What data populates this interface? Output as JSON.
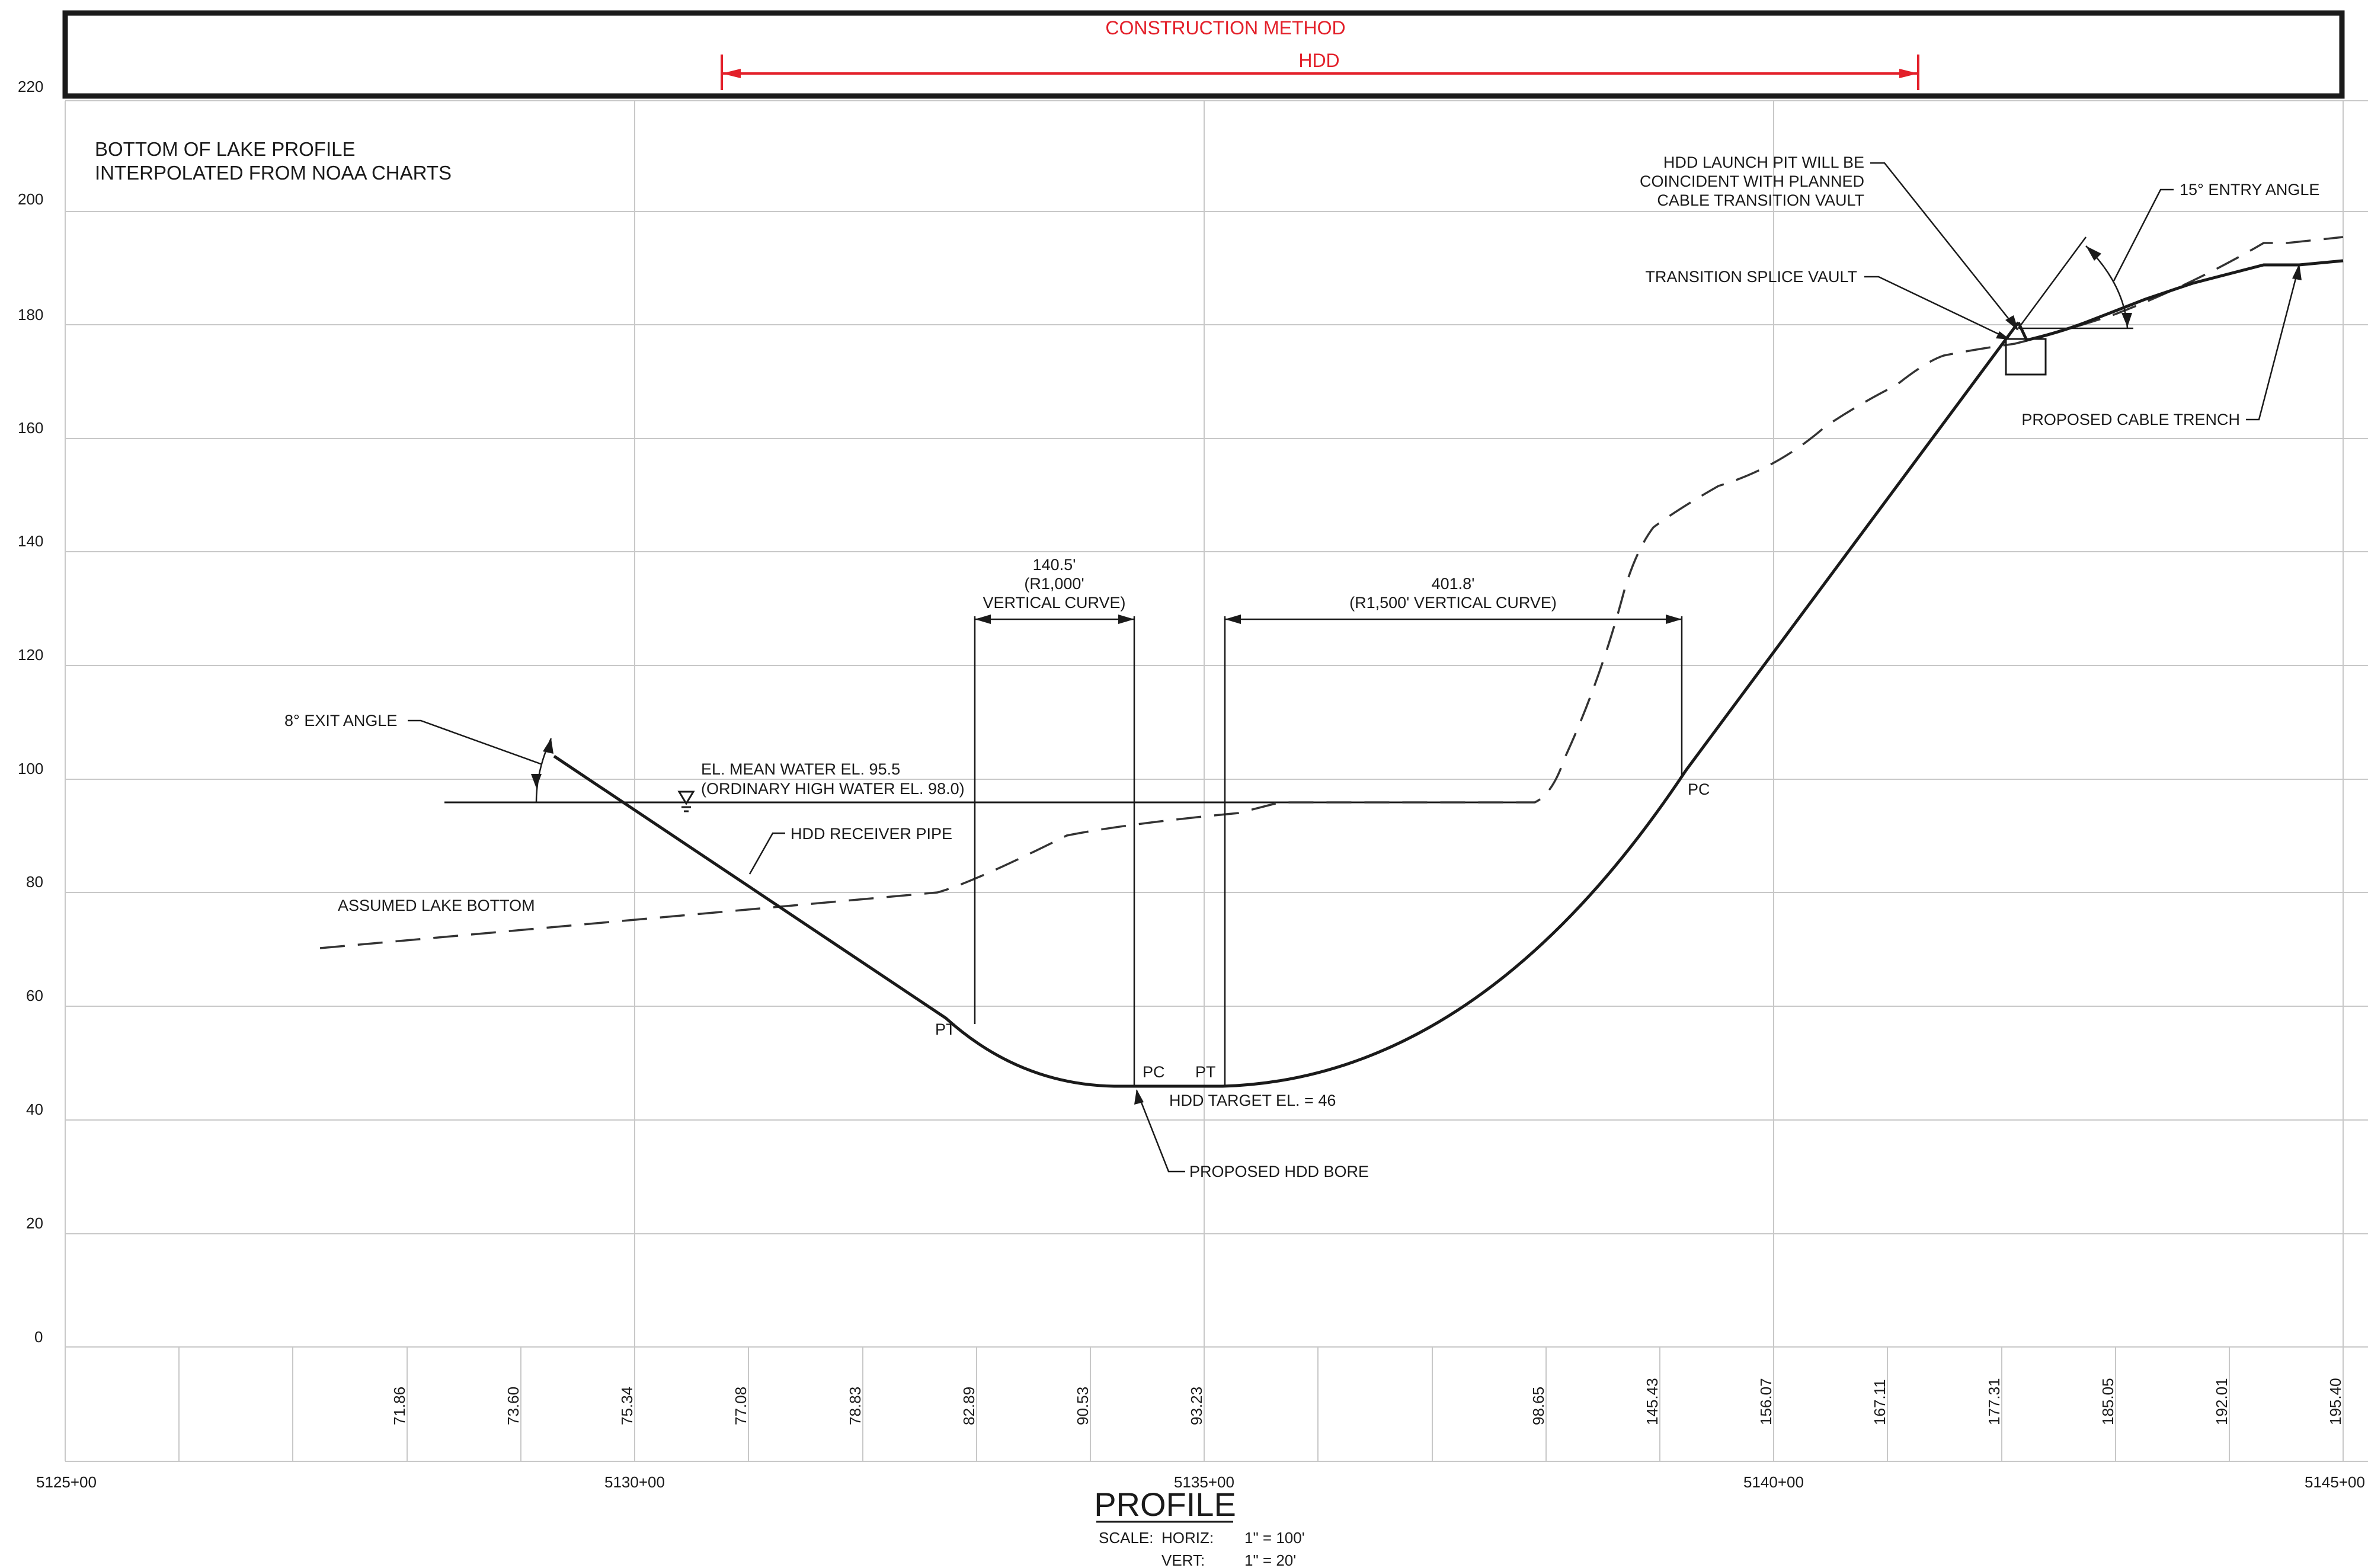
{
  "header": {
    "construction_method_label": "CONSTRUCTION METHOD",
    "hdd_label": "HDD"
  },
  "notes": {
    "lake_profile_line1": "BOTTOM OF LAKE PROFILE",
    "lake_profile_line2": "INTERPOLATED FROM NOAA CHARTS"
  },
  "elevation_axis": {
    "labels": [
      "220",
      "200",
      "180",
      "160",
      "140",
      "120",
      "100",
      "80",
      "60",
      "40",
      "20",
      "0"
    ],
    "values": [
      220,
      200,
      180,
      160,
      140,
      120,
      100,
      80,
      60,
      40,
      20,
      0
    ]
  },
  "station_axis": {
    "labels": [
      "5125+00",
      "5130+00",
      "5135+00",
      "5140+00",
      "5145+00"
    ],
    "values": [
      5125,
      5130,
      5135,
      5140,
      5145
    ]
  },
  "ground_elevations": [
    {
      "label": "71.86",
      "station": 5128.0
    },
    {
      "label": "73.60",
      "station": 5129.0
    },
    {
      "label": "75.34",
      "station": 5130.0
    },
    {
      "label": "77.08",
      "station": 5131.0
    },
    {
      "label": "78.83",
      "station": 5132.0
    },
    {
      "label": "82.89",
      "station": 5133.0
    },
    {
      "label": "90.53",
      "station": 5134.0
    },
    {
      "label": "93.23",
      "station": 5135.0
    },
    {
      "label": "98.65",
      "station": 5138.0
    },
    {
      "label": "145.43",
      "station": 5139.0
    },
    {
      "label": "156.07",
      "station": 5140.0
    },
    {
      "label": "167.11",
      "station": 5141.0
    },
    {
      "label": "177.31",
      "station": 5142.0
    },
    {
      "label": "185.05",
      "station": 5143.0
    },
    {
      "label": "192.01",
      "station": 5144.0
    },
    {
      "label": "195.40",
      "station": 5145.0
    }
  ],
  "annotations": {
    "exit_angle": "8° EXIT ANGLE",
    "water_line1": "EL. MEAN WATER EL. 95.5",
    "water_line2": "(ORDINARY HIGH WATER EL. 98.0)",
    "receiver_pipe": "HDD RECEIVER PIPE",
    "assumed_lake_bottom": "ASSUMED LAKE BOTTOM",
    "curve1_length": "140.5'",
    "curve1_radius": "(R1,000'",
    "curve1_type": "VERTICAL CURVE)",
    "curve2_length": "401.8'",
    "curve2_radius": "(R1,500' VERTICAL CURVE)",
    "pt_label": "PT",
    "pc_label": "PC",
    "target_el": "HDD TARGET EL. = 46",
    "proposed_bore": "PROPOSED HDD BORE",
    "launch_pit_line1": "HDD LAUNCH PIT WILL BE",
    "launch_pit_line2": "COINCIDENT WITH PLANNED",
    "launch_pit_line3": "CABLE TRANSITION VAULT",
    "entry_angle": "15° ENTRY ANGLE",
    "splice_vault": "TRANSITION SPLICE VAULT",
    "cable_trench": "PROPOSED CABLE TRENCH"
  },
  "title_block": {
    "title": "PROFILE",
    "scale_label": "SCALE:",
    "horiz_label": "HORIZ:",
    "horiz_value": "1\" = 100'",
    "vert_label": "VERT:",
    "vert_value": "1\" = 20'"
  },
  "colors": {
    "construction_method": "#e3202a",
    "linework": "#1a1a1a",
    "grid": "#c8c8c8"
  }
}
